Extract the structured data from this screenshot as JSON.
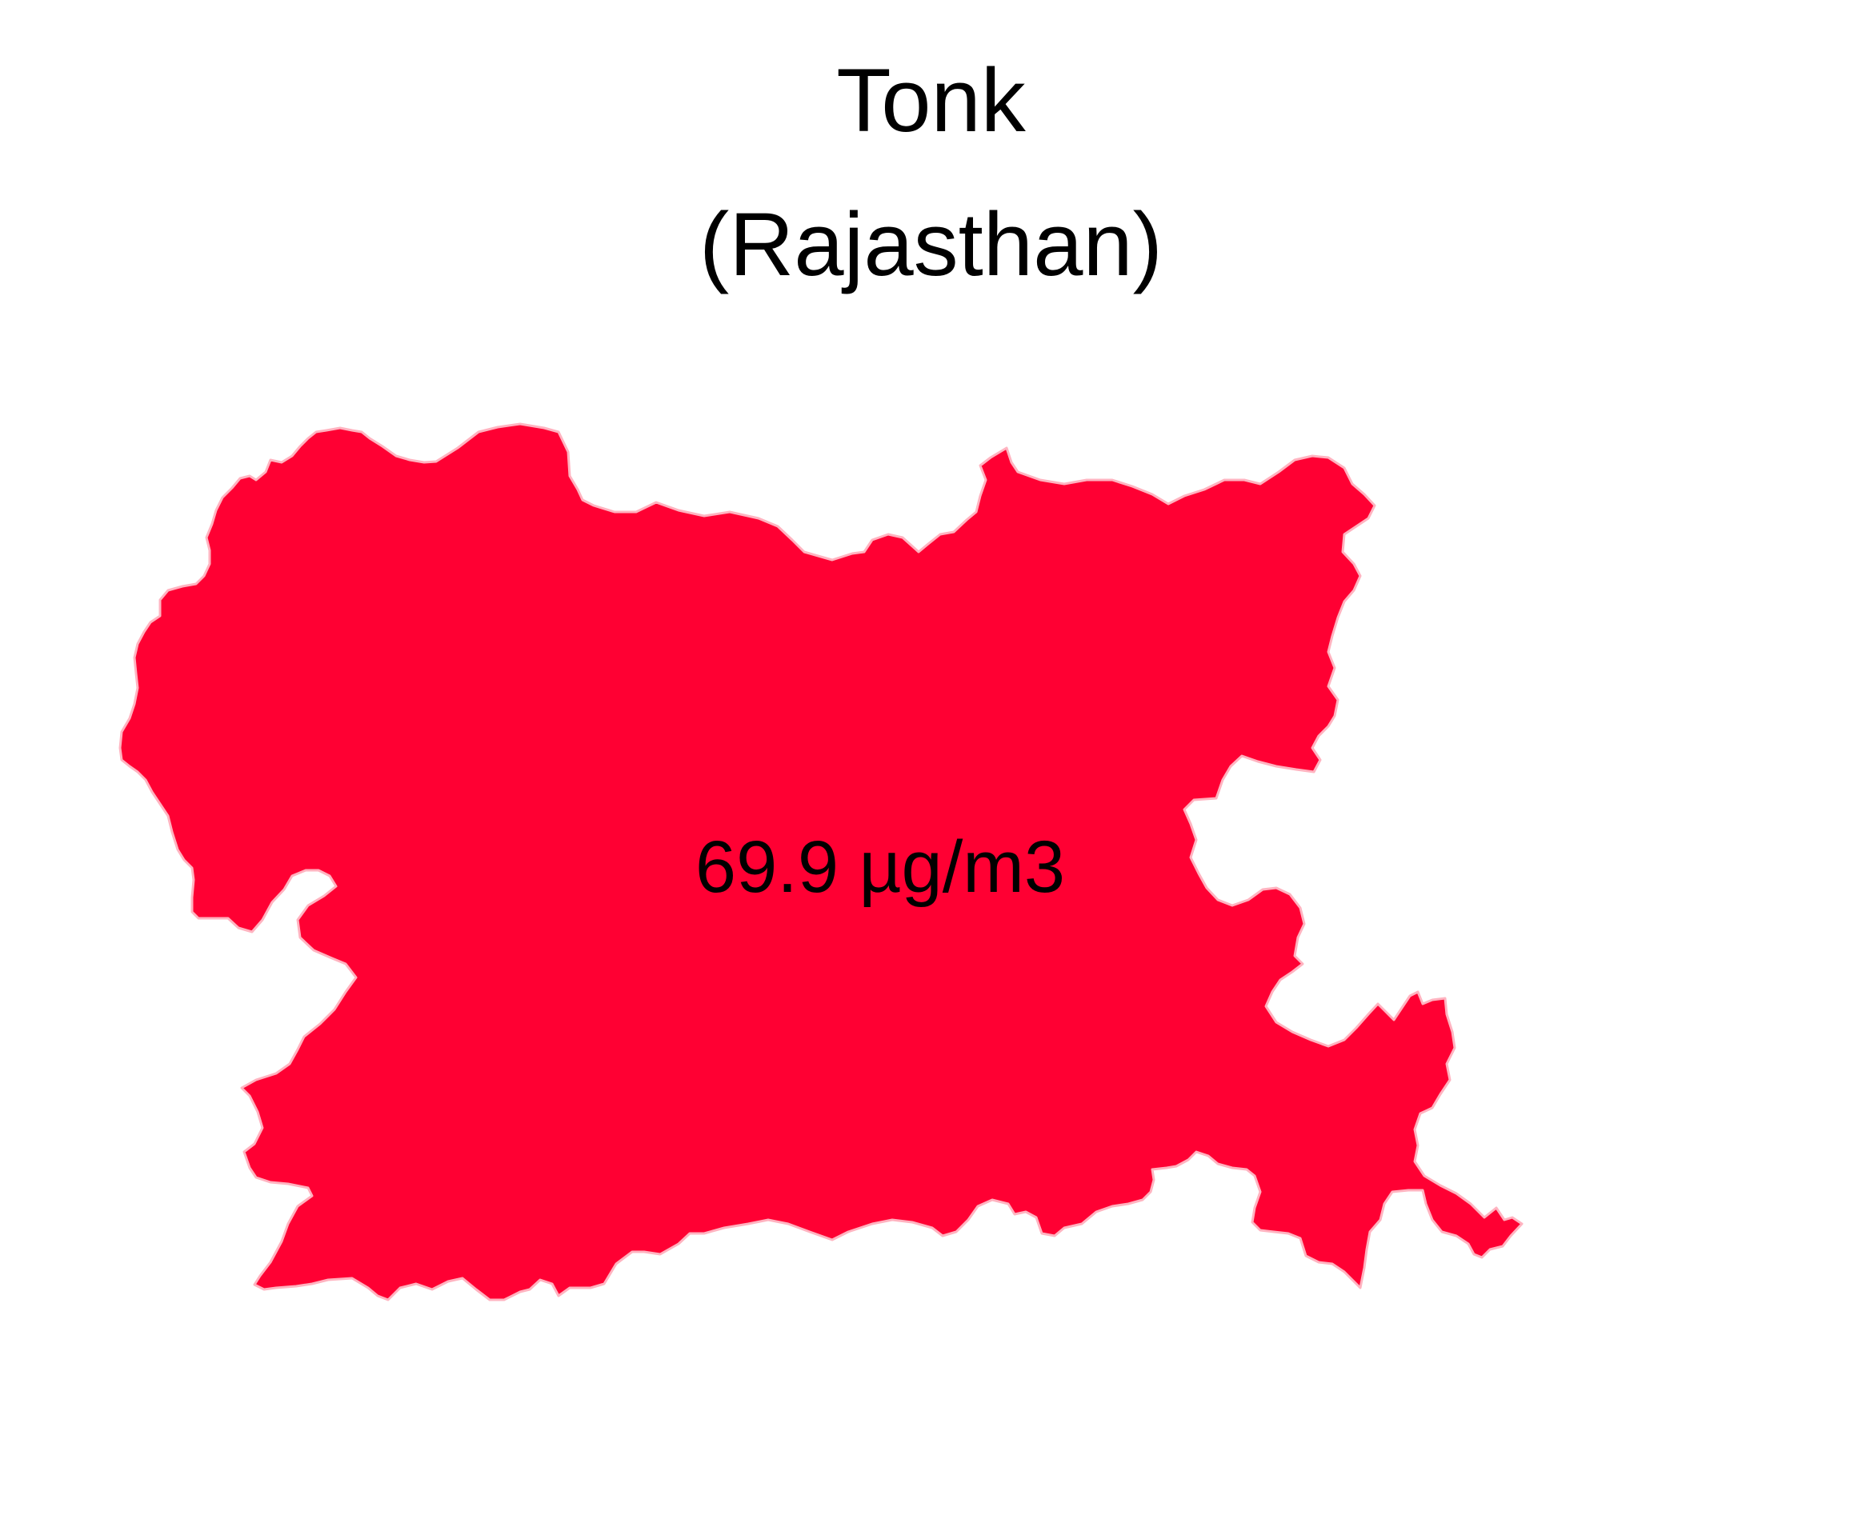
{
  "map": {
    "title_line1": "Tonk",
    "title_line2": "(Rajasthan)",
    "region": {
      "district": "Tonk",
      "state": "Rajasthan",
      "value_label": "69.9 µg/m3",
      "fill_color": "#ff0033",
      "border_color": "#ffb3c0"
    }
  }
}
